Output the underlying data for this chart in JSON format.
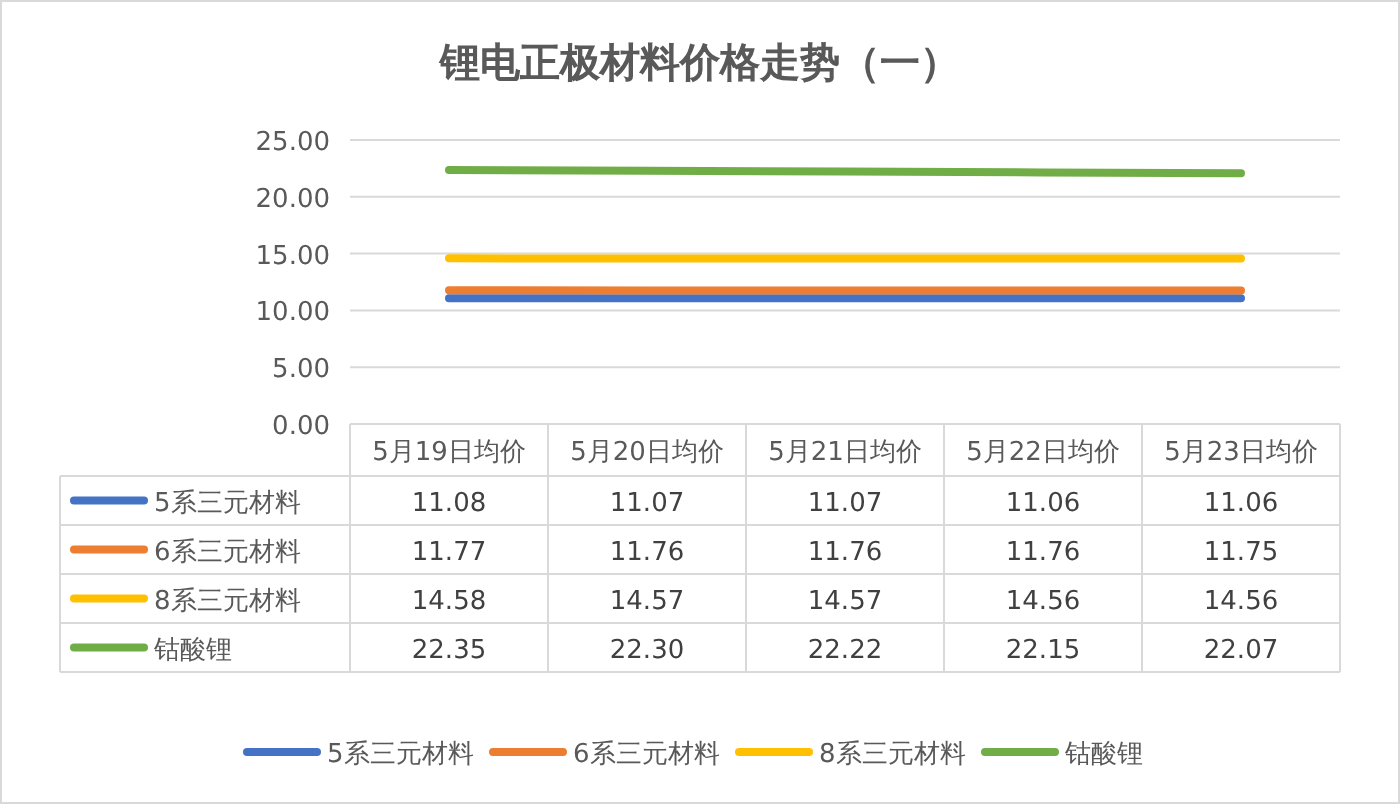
{
  "chart_data": {
    "type": "line",
    "title": "锂电正极材料价格走势（一）",
    "categories": [
      "5月19日均价",
      "5月20日均价",
      "5月21日均价",
      "5月22日均价",
      "5月23日均价"
    ],
    "series": [
      {
        "name": "5系三元材料",
        "color": "#4472c4",
        "values": [
          11.08,
          11.07,
          11.07,
          11.06,
          11.06
        ],
        "value_labels": [
          "11.08",
          "11.07",
          "11.07",
          "11.06",
          "11.06"
        ]
      },
      {
        "name": "6系三元材料",
        "color": "#ed7d31",
        "values": [
          11.77,
          11.76,
          11.76,
          11.76,
          11.75
        ],
        "value_labels": [
          "11.77",
          "11.76",
          "11.76",
          "11.76",
          "11.75"
        ]
      },
      {
        "name": "8系三元材料",
        "color": "#ffc000",
        "values": [
          14.58,
          14.57,
          14.57,
          14.56,
          14.56
        ],
        "value_labels": [
          "14.58",
          "14.57",
          "14.57",
          "14.56",
          "14.56"
        ]
      },
      {
        "name": "钴酸锂",
        "color": "#70ad47",
        "values": [
          22.35,
          22.3,
          22.22,
          22.15,
          22.07
        ],
        "value_labels": [
          "22.35",
          "22.30",
          "22.22",
          "22.15",
          "22.07"
        ]
      }
    ],
    "ylim": [
      0,
      25
    ],
    "yticks": [
      {
        "value": 0,
        "label": "0.00"
      },
      {
        "value": 5,
        "label": "5.00"
      },
      {
        "value": 10,
        "label": "10.00"
      },
      {
        "value": 15,
        "label": "15.00"
      },
      {
        "value": 20,
        "label": "20.00"
      },
      {
        "value": 25,
        "label": "25.00"
      }
    ],
    "grid": "y",
    "legend": "bottom",
    "marker": "none",
    "line_style": "solid"
  }
}
